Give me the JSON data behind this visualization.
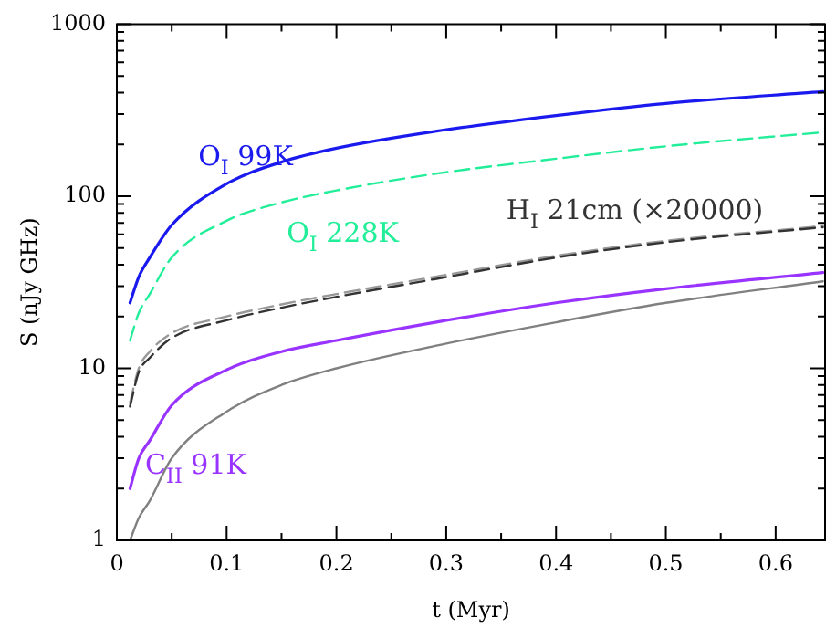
{
  "chart_data": {
    "type": "line",
    "xlabel": "t (Myr)",
    "ylabel": "S (nJy GHz)",
    "x": [
      0.012,
      0.02,
      0.03,
      0.05,
      0.1,
      0.15,
      0.2,
      0.29,
      0.4,
      0.5,
      0.643
    ],
    "series": [
      {
        "name": "O$_{I}$ 99K",
        "color": "#1a1aee",
        "line_style": "solid",
        "values": [
          24,
          34,
          44,
          68,
          118,
          158,
          190,
          238,
          294,
          346,
          405
        ]
      },
      {
        "name": "O$_{I}$ 228K",
        "color": "#22ee99",
        "line_style": "dashed",
        "values": [
          14.5,
          21,
          27,
          44,
          72,
          92,
          108,
          135,
          165,
          195,
          235
        ]
      },
      {
        "name": "H$_{I}$ 21cm (×20000)",
        "color": "#333333",
        "line_style": "dashed",
        "values": [
          6,
          9.5,
          11.5,
          15,
          19,
          22.5,
          26,
          33,
          44,
          54,
          66
        ]
      },
      {
        "color": "#999999",
        "line_style": "dashed",
        "values": [
          6.3,
          10,
          12.5,
          16,
          20,
          23.5,
          27,
          34,
          45,
          55,
          67
        ]
      },
      {
        "name": "C$_{II}$ 91K",
        "color": "#9933ff",
        "line_style": "solid",
        "values": [
          2,
          3,
          3.8,
          6.1,
          9.8,
          12.5,
          14.5,
          18.5,
          24,
          29,
          36
        ]
      },
      {
        "color": "#808080",
        "line_style": "solid",
        "values": [
          1,
          1.35,
          1.7,
          3,
          5.6,
          8,
          10,
          13.5,
          18.5,
          24,
          32
        ]
      }
    ],
    "log": "y",
    "grid": false,
    "legend": false,
    "marker": "none",
    "xlim": [
      0,
      0.645
    ],
    "xticks": [
      0,
      {
        "value": 0.05,
        "label": null
      },
      0.1,
      {
        "value": 0.15,
        "label": null
      },
      0.2,
      {
        "value": 0.25,
        "label": null
      },
      0.3,
      {
        "value": 0.35,
        "label": null
      },
      0.4,
      {
        "value": 0.45,
        "label": null
      },
      0.5,
      {
        "value": 0.55,
        "label": null
      },
      0.6
    ],
    "ylim": [
      1,
      1000
    ],
    "yticks": [
      1,
      {
        "value": 2,
        "label": null
      },
      {
        "value": 3,
        "label": null
      },
      {
        "value": 4,
        "label": null
      },
      {
        "value": 5,
        "label": null
      },
      {
        "value": 6,
        "label": null
      },
      {
        "value": 7,
        "label": null
      },
      {
        "value": 8,
        "label": null
      },
      {
        "value": 9,
        "label": null
      },
      10,
      {
        "value": 20,
        "label": null
      },
      {
        "value": 30,
        "label": null
      },
      {
        "value": 40,
        "label": null
      },
      {
        "value": 50,
        "label": null
      },
      {
        "value": 60,
        "label": null
      },
      {
        "value": 70,
        "label": null
      },
      {
        "value": 80,
        "label": null
      },
      {
        "value": 90,
        "label": null
      },
      100,
      {
        "value": 200,
        "label": null
      },
      {
        "value": 300,
        "label": null
      },
      {
        "value": 400,
        "label": null
      },
      {
        "value": 500,
        "label": null
      },
      {
        "value": 600,
        "label": null
      },
      {
        "value": 700,
        "label": null
      },
      {
        "value": 800,
        "label": null
      },
      {
        "value": 900,
        "label": null
      },
      1000
    ]
  }
}
